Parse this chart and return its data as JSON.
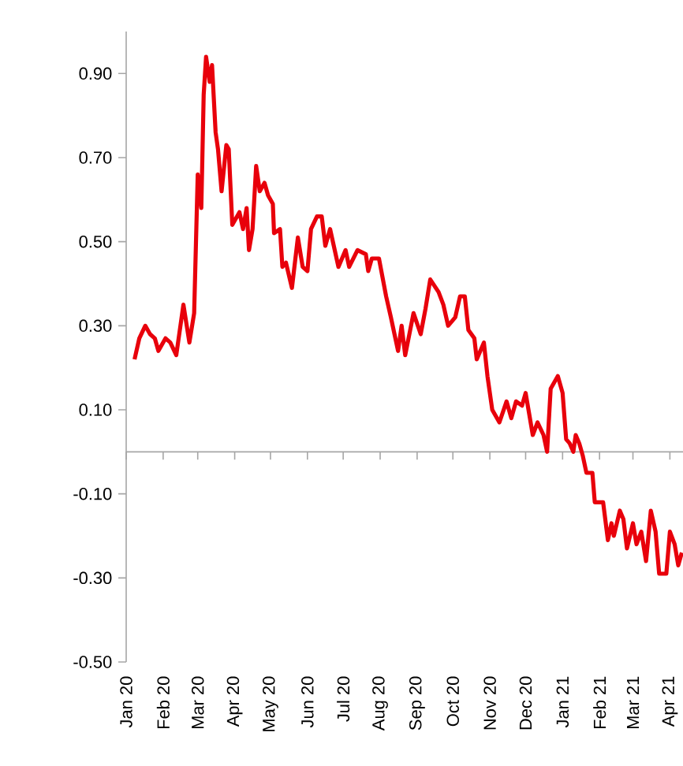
{
  "chart_data": {
    "type": "line",
    "color": "#e8000b",
    "x": [
      "2020-01-08",
      "2020-01-12",
      "2020-01-17",
      "2020-01-21",
      "2020-01-25",
      "2020-01-28",
      "2020-02-03",
      "2020-02-07",
      "2020-02-12",
      "2020-02-18",
      "2020-02-23",
      "2020-02-27",
      "2020-03-01",
      "2020-03-04",
      "2020-03-06",
      "2020-03-08",
      "2020-03-11",
      "2020-03-13",
      "2020-03-16",
      "2020-03-18",
      "2020-03-21",
      "2020-03-25",
      "2020-03-27",
      "2020-03-30",
      "2020-04-05",
      "2020-04-08",
      "2020-04-11",
      "2020-04-13",
      "2020-04-16",
      "2020-04-19",
      "2020-04-22",
      "2020-04-26",
      "2020-04-29",
      "2020-05-03",
      "2020-05-04",
      "2020-05-09",
      "2020-05-11",
      "2020-05-14",
      "2020-05-19",
      "2020-05-24",
      "2020-05-28",
      "2020-06-01",
      "2020-06-04",
      "2020-06-09",
      "2020-06-13",
      "2020-06-16",
      "2020-06-20",
      "2020-06-27",
      "2020-07-03",
      "2020-07-06",
      "2020-07-13",
      "2020-07-20",
      "2020-07-22",
      "2020-07-25",
      "2020-07-31",
      "2020-08-06",
      "2020-08-10",
      "2020-08-16",
      "2020-08-19",
      "2020-08-22",
      "2020-08-29",
      "2020-09-04",
      "2020-09-08",
      "2020-09-12",
      "2020-09-19",
      "2020-09-23",
      "2020-09-27",
      "2020-10-03",
      "2020-10-07",
      "2020-10-11",
      "2020-10-14",
      "2020-10-19",
      "2020-10-21",
      "2020-10-27",
      "2020-10-30",
      "2020-11-03",
      "2020-11-09",
      "2020-11-15",
      "2020-11-19",
      "2020-11-23",
      "2020-11-28",
      "2020-12-01",
      "2020-12-07",
      "2020-12-11",
      "2020-12-16",
      "2020-12-19",
      "2020-12-22",
      "2020-12-28",
      "2021-01-01",
      "2021-01-04",
      "2021-01-07",
      "2021-01-10",
      "2021-01-12",
      "2021-01-15",
      "2021-01-18",
      "2021-01-21",
      "2021-01-26",
      "2021-01-28",
      "2021-02-04",
      "2021-02-08",
      "2021-02-11",
      "2021-02-13",
      "2021-02-18",
      "2021-02-21",
      "2021-02-24",
      "2021-03-01",
      "2021-03-04",
      "2021-03-08",
      "2021-03-12",
      "2021-03-16",
      "2021-03-20",
      "2021-03-23",
      "2021-03-29",
      "2021-04-01",
      "2021-04-05",
      "2021-04-08",
      "2021-04-11"
    ],
    "values": [
      0.22,
      0.27,
      0.3,
      0.28,
      0.27,
      0.24,
      0.27,
      0.26,
      0.23,
      0.35,
      0.26,
      0.33,
      0.66,
      0.58,
      0.85,
      0.94,
      0.88,
      0.92,
      0.76,
      0.72,
      0.62,
      0.73,
      0.72,
      0.54,
      0.57,
      0.53,
      0.58,
      0.48,
      0.53,
      0.68,
      0.62,
      0.64,
      0.61,
      0.59,
      0.52,
      0.53,
      0.44,
      0.45,
      0.39,
      0.51,
      0.44,
      0.43,
      0.53,
      0.56,
      0.56,
      0.49,
      0.53,
      0.44,
      0.48,
      0.44,
      0.48,
      0.47,
      0.43,
      0.46,
      0.46,
      0.37,
      0.32,
      0.24,
      0.3,
      0.23,
      0.33,
      0.28,
      0.34,
      0.41,
      0.38,
      0.35,
      0.3,
      0.32,
      0.37,
      0.37,
      0.29,
      0.27,
      0.22,
      0.26,
      0.18,
      0.1,
      0.07,
      0.12,
      0.08,
      0.12,
      0.11,
      0.14,
      0.04,
      0.07,
      0.04,
      0.0,
      0.15,
      0.18,
      0.14,
      0.03,
      0.02,
      0.0,
      0.04,
      0.02,
      -0.01,
      -0.05,
      -0.05,
      -0.12,
      -0.12,
      -0.21,
      -0.17,
      -0.2,
      -0.14,
      -0.16,
      -0.23,
      -0.17,
      -0.22,
      -0.19,
      -0.26,
      -0.14,
      -0.19,
      -0.29,
      -0.29,
      -0.19,
      -0.22,
      -0.27,
      -0.24
    ],
    "xlim": [
      "2020-01-01",
      "2021-04-12"
    ],
    "ylim": [
      -0.5,
      1.0
    ],
    "xticks": [
      {
        "value": "2020-01-01",
        "label": "Jan 20"
      },
      {
        "value": "2020-02-01",
        "label": "Feb 20"
      },
      {
        "value": "2020-03-01",
        "label": "Mar 20"
      },
      {
        "value": "2020-04-01",
        "label": "Apr 20"
      },
      {
        "value": "2020-05-01",
        "label": "May 20"
      },
      {
        "value": "2020-06-01",
        "label": "Jun 20"
      },
      {
        "value": "2020-07-01",
        "label": "Jul 20"
      },
      {
        "value": "2020-08-01",
        "label": "Aug 20"
      },
      {
        "value": "2020-09-01",
        "label": "Sep 20"
      },
      {
        "value": "2020-10-01",
        "label": "Oct 20"
      },
      {
        "value": "2020-11-01",
        "label": "Nov 20"
      },
      {
        "value": "2020-12-01",
        "label": "Dec 20"
      },
      {
        "value": "2021-01-01",
        "label": "Jan 21"
      },
      {
        "value": "2021-02-01",
        "label": "Feb 21"
      },
      {
        "value": "2021-03-01",
        "label": "Mar 21"
      },
      {
        "value": "2021-04-01",
        "label": "Apr 21"
      }
    ],
    "yticks": [
      {
        "value": 0.9,
        "label": "0.90"
      },
      {
        "value": 0.7,
        "label": "0.70"
      },
      {
        "value": 0.5,
        "label": "0.50"
      },
      {
        "value": 0.3,
        "label": "0.30"
      },
      {
        "value": 0.1,
        "label": "0.10"
      },
      {
        "value": -0.1,
        "label": "-0.10"
      },
      {
        "value": -0.3,
        "label": "-0.30"
      },
      {
        "value": -0.5,
        "label": "-0.50"
      }
    ]
  }
}
